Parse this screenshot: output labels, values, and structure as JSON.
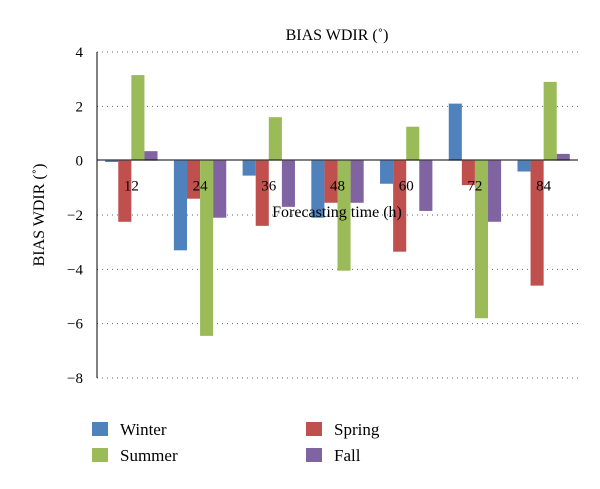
{
  "chart_data": {
    "type": "bar",
    "title": "BIAS WDIR (˚)",
    "xlabel": "Forecasting time (h)",
    "ylabel": "BIAS WDIR (˚)",
    "categories": [
      "12",
      "24",
      "36",
      "48",
      "60",
      "72",
      "84"
    ],
    "series": [
      {
        "name": "Winter",
        "color": "#4f81bd",
        "values": [
          -0.05,
          -3.3,
          -0.55,
          -2.1,
          -0.85,
          2.1,
          -0.4
        ]
      },
      {
        "name": "Spring",
        "color": "#c0504d",
        "values": [
          -2.25,
          -1.4,
          -2.4,
          -1.55,
          -3.35,
          -0.9,
          -4.6
        ]
      },
      {
        "name": "Summer",
        "color": "#9bbb59",
        "values": [
          3.15,
          -6.45,
          1.6,
          -4.05,
          1.25,
          -5.8,
          2.9
        ]
      },
      {
        "name": "Fall",
        "color": "#8064a2",
        "values": [
          0.35,
          -2.1,
          -1.7,
          -1.55,
          -1.85,
          -2.25,
          0.25
        ]
      }
    ],
    "ylim": [
      -8,
      4
    ],
    "yticks": [
      4,
      2,
      0,
      -2,
      -4,
      -6,
      -8
    ],
    "ytick_labels": [
      "4",
      "2",
      "0",
      "−2",
      "−4",
      "−6",
      "−8"
    ],
    "grid": true,
    "legend_position": "bottom"
  }
}
